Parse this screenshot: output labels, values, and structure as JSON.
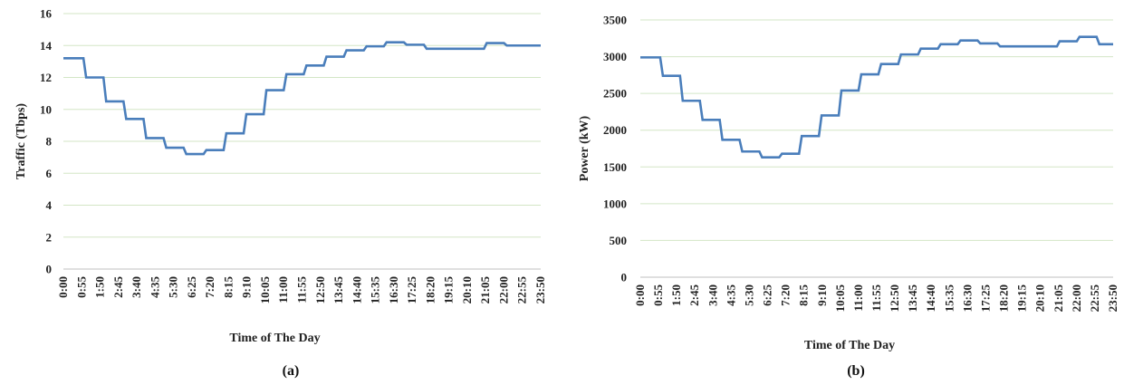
{
  "colors": {
    "series": "#4a7ebb",
    "grid": "#d3e6c6"
  },
  "chart_data": [
    {
      "type": "line",
      "caption": "(a)",
      "xlabel": "Time of The Day",
      "ylabel": "Traffic (Tbps)",
      "ylim": [
        0,
        16
      ],
      "yticks": [
        0,
        2,
        4,
        6,
        8,
        10,
        12,
        14,
        16
      ],
      "grid": true,
      "step": true,
      "x_tick_labels": [
        "0:00",
        "0:55",
        "1:50",
        "2:45",
        "3:40",
        "4:35",
        "5:30",
        "6:25",
        "7:20",
        "8:15",
        "9:10",
        "10:05",
        "11:00",
        "11:55",
        "12:50",
        "13:45",
        "14:40",
        "15:35",
        "16:30",
        "17:25",
        "18:20",
        "19:15",
        "20:10",
        "21:05",
        "22:00",
        "22:55",
        "23:50"
      ],
      "x_start_minutes": 0,
      "x_end_minutes": 1430,
      "series": [
        {
          "x_hours": [
            0,
            1,
            2,
            3,
            4,
            5,
            6,
            7,
            8,
            9,
            10,
            11,
            12,
            13,
            14,
            15,
            16,
            17,
            18,
            21,
            22,
            23.833
          ],
          "values": [
            13.2,
            12.0,
            10.5,
            9.4,
            8.2,
            7.6,
            7.2,
            7.45,
            8.5,
            9.7,
            11.2,
            12.2,
            12.75,
            13.3,
            13.7,
            13.95,
            14.2,
            14.05,
            13.8,
            14.15,
            14.0,
            14.0
          ]
        }
      ]
    },
    {
      "type": "line",
      "caption": "(b)",
      "xlabel": "Time of The Day",
      "ylabel": "Power (kW)",
      "ylim": [
        0,
        3500
      ],
      "yticks": [
        0,
        500,
        1000,
        1500,
        2000,
        2500,
        3000,
        3500
      ],
      "grid": true,
      "step": true,
      "x_tick_labels": [
        "0:00",
        "0:55",
        "1:50",
        "2:45",
        "3:40",
        "4:35",
        "5:30",
        "6:25",
        "7:20",
        "8:15",
        "9:10",
        "10:05",
        "11:00",
        "11:55",
        "12:50",
        "13:45",
        "14:40",
        "15:35",
        "16:30",
        "17:25",
        "18:20",
        "19:15",
        "20:10",
        "21:05",
        "22:00",
        "22:55",
        "23:50"
      ],
      "x_start_minutes": 0,
      "x_end_minutes": 1430,
      "series": [
        {
          "x_hours": [
            0,
            1,
            2,
            3,
            4,
            5,
            6,
            7,
            8,
            9,
            10,
            11,
            12,
            13,
            14,
            15,
            16,
            17,
            18,
            21,
            22,
            23,
            23.833
          ],
          "values": [
            2990,
            2740,
            2400,
            2140,
            1870,
            1710,
            1630,
            1680,
            1920,
            2200,
            2540,
            2760,
            2900,
            3030,
            3110,
            3170,
            3220,
            3180,
            3140,
            3210,
            3270,
            3170,
            3170
          ]
        }
      ]
    }
  ]
}
